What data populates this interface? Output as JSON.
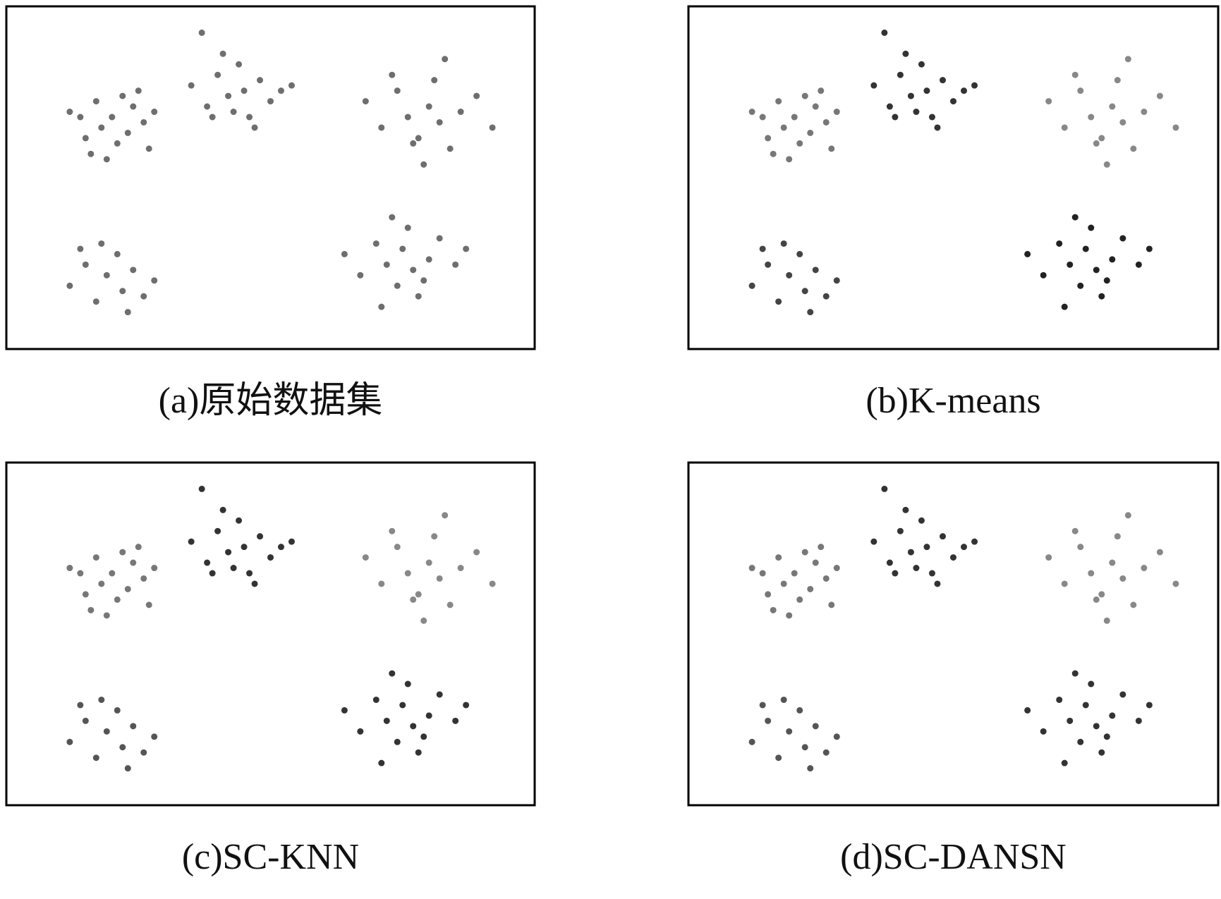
{
  "chart_data": [
    {
      "type": "scatter",
      "title": "(a)原始数据集",
      "xlim": [
        0,
        100
      ],
      "ylim": [
        0,
        65
      ],
      "series": [
        {
          "color": "#6e6e6e",
          "x": [
            12,
            15,
            17,
            18,
            20,
            21,
            22,
            23,
            24,
            26,
            27,
            19,
            14,
            25,
            16,
            28
          ],
          "y": [
            45,
            40,
            47,
            42,
            44,
            39,
            48,
            41,
            46,
            43,
            38,
            36,
            44,
            49,
            37,
            45
          ]
        },
        {
          "color": "#6e6e6e",
          "x": [
            35,
            38,
            40,
            42,
            43,
            44,
            45,
            46,
            48,
            50,
            52,
            41,
            47,
            39,
            54,
            37
          ],
          "y": [
            50,
            46,
            52,
            48,
            45,
            54,
            49,
            44,
            51,
            47,
            49,
            56,
            42,
            44,
            50,
            60
          ]
        },
        {
          "color": "#6e6e6e",
          "x": [
            68,
            71,
            74,
            76,
            78,
            80,
            81,
            82,
            84,
            86,
            89,
            79,
            83,
            73,
            92,
            77
          ],
          "y": [
            47,
            42,
            49,
            44,
            40,
            46,
            51,
            43,
            38,
            45,
            48,
            35,
            55,
            52,
            42,
            39
          ]
        },
        {
          "color": "#6e6e6e",
          "x": [
            64,
            67,
            70,
            72,
            74,
            75,
            76,
            77,
            78,
            80,
            82,
            85,
            73,
            79,
            71,
            87
          ],
          "y": [
            18,
            14,
            20,
            16,
            12,
            19,
            23,
            15,
            10,
            17,
            21,
            16,
            25,
            13,
            8,
            19
          ]
        },
        {
          "color": "#6e6e6e",
          "x": [
            12,
            15,
            17,
            19,
            21,
            22,
            24,
            26,
            28,
            18,
            23,
            14
          ],
          "y": [
            12,
            16,
            9,
            14,
            18,
            11,
            15,
            10,
            13,
            20,
            7,
            19
          ]
        }
      ]
    },
    {
      "type": "scatter",
      "title": "(b)K-means",
      "xlim": [
        0,
        100
      ],
      "ylim": [
        0,
        65
      ],
      "series": [
        {
          "color": "#777777",
          "x": [
            12,
            15,
            17,
            18,
            20,
            21,
            22,
            23,
            24,
            26,
            27,
            19,
            14,
            25,
            16,
            28
          ],
          "y": [
            45,
            40,
            47,
            42,
            44,
            39,
            48,
            41,
            46,
            43,
            38,
            36,
            44,
            49,
            37,
            45
          ]
        },
        {
          "color": "#333333",
          "x": [
            35,
            38,
            40,
            42,
            43,
            44,
            45,
            46,
            48,
            50,
            52,
            41,
            47,
            39,
            54,
            37
          ],
          "y": [
            50,
            46,
            52,
            48,
            45,
            54,
            49,
            44,
            51,
            47,
            49,
            56,
            42,
            44,
            50,
            60
          ]
        },
        {
          "color": "#888888",
          "x": [
            68,
            71,
            74,
            76,
            78,
            80,
            81,
            82,
            84,
            86,
            89,
            79,
            83,
            73,
            92,
            77
          ],
          "y": [
            47,
            42,
            49,
            44,
            40,
            46,
            51,
            43,
            38,
            45,
            48,
            35,
            55,
            52,
            42,
            39
          ]
        },
        {
          "color": "#222222",
          "x": [
            64,
            67,
            70,
            72,
            74,
            75,
            76,
            77,
            78,
            80,
            82,
            85,
            73,
            79,
            71,
            87
          ],
          "y": [
            18,
            14,
            20,
            16,
            12,
            19,
            23,
            15,
            10,
            17,
            21,
            16,
            25,
            13,
            8,
            19
          ]
        },
        {
          "color": "#444444",
          "x": [
            12,
            15,
            17,
            19,
            21,
            22,
            24,
            26,
            28,
            18,
            23,
            14
          ],
          "y": [
            12,
            16,
            9,
            14,
            18,
            11,
            15,
            10,
            13,
            20,
            7,
            19
          ]
        }
      ]
    },
    {
      "type": "scatter",
      "title": "(c)SC-KNN",
      "xlim": [
        0,
        100
      ],
      "ylim": [
        0,
        65
      ],
      "series": [
        {
          "color": "#777777",
          "x": [
            12,
            15,
            17,
            18,
            20,
            21,
            22,
            23,
            24,
            26,
            27,
            19,
            14,
            25,
            16,
            28
          ],
          "y": [
            45,
            40,
            47,
            42,
            44,
            39,
            48,
            41,
            46,
            43,
            38,
            36,
            44,
            49,
            37,
            45
          ]
        },
        {
          "color": "#333333",
          "x": [
            35,
            38,
            40,
            42,
            43,
            44,
            45,
            46,
            48,
            50,
            52,
            41,
            47,
            39,
            54,
            37
          ],
          "y": [
            50,
            46,
            52,
            48,
            45,
            54,
            49,
            44,
            51,
            47,
            49,
            56,
            42,
            44,
            50,
            60
          ]
        },
        {
          "color": "#888888",
          "x": [
            68,
            71,
            74,
            76,
            78,
            80,
            81,
            82,
            84,
            86,
            89,
            79,
            83,
            73,
            92,
            77
          ],
          "y": [
            47,
            42,
            49,
            44,
            40,
            46,
            51,
            43,
            38,
            45,
            48,
            35,
            55,
            52,
            42,
            39
          ]
        },
        {
          "color": "#333333",
          "x": [
            64,
            67,
            70,
            72,
            74,
            75,
            76,
            77,
            78,
            80,
            82,
            85,
            73,
            79,
            71,
            87
          ],
          "y": [
            18,
            14,
            20,
            16,
            12,
            19,
            23,
            15,
            10,
            17,
            21,
            16,
            25,
            13,
            8,
            19
          ]
        },
        {
          "color": "#555555",
          "x": [
            12,
            15,
            17,
            19,
            21,
            22,
            24,
            26,
            28,
            18,
            23,
            14
          ],
          "y": [
            12,
            16,
            9,
            14,
            18,
            11,
            15,
            10,
            13,
            20,
            7,
            19
          ]
        }
      ]
    },
    {
      "type": "scatter",
      "title": "(d)SC-DANSN",
      "xlim": [
        0,
        100
      ],
      "ylim": [
        0,
        65
      ],
      "series": [
        {
          "color": "#777777",
          "x": [
            12,
            15,
            17,
            18,
            20,
            21,
            22,
            23,
            24,
            26,
            27,
            19,
            14,
            25,
            16,
            28
          ],
          "y": [
            45,
            40,
            47,
            42,
            44,
            39,
            48,
            41,
            46,
            43,
            38,
            36,
            44,
            49,
            37,
            45
          ]
        },
        {
          "color": "#333333",
          "x": [
            35,
            38,
            40,
            42,
            43,
            44,
            45,
            46,
            48,
            50,
            52,
            41,
            47,
            39,
            54,
            37
          ],
          "y": [
            50,
            46,
            52,
            48,
            45,
            54,
            49,
            44,
            51,
            47,
            49,
            56,
            42,
            44,
            50,
            60
          ]
        },
        {
          "color": "#888888",
          "x": [
            68,
            71,
            74,
            76,
            78,
            80,
            81,
            82,
            84,
            86,
            89,
            79,
            83,
            73,
            92,
            77
          ],
          "y": [
            47,
            42,
            49,
            44,
            40,
            46,
            51,
            43,
            38,
            45,
            48,
            35,
            55,
            52,
            42,
            39
          ]
        },
        {
          "color": "#333333",
          "x": [
            64,
            67,
            70,
            72,
            74,
            75,
            76,
            77,
            78,
            80,
            82,
            85,
            73,
            79,
            71,
            87
          ],
          "y": [
            18,
            14,
            20,
            16,
            12,
            19,
            23,
            15,
            10,
            17,
            21,
            16,
            25,
            13,
            8,
            19
          ]
        },
        {
          "color": "#555555",
          "x": [
            12,
            15,
            17,
            19,
            21,
            22,
            24,
            26,
            28,
            18,
            23,
            14
          ],
          "y": [
            12,
            16,
            9,
            14,
            18,
            11,
            15,
            10,
            13,
            20,
            7,
            19
          ]
        }
      ]
    }
  ]
}
